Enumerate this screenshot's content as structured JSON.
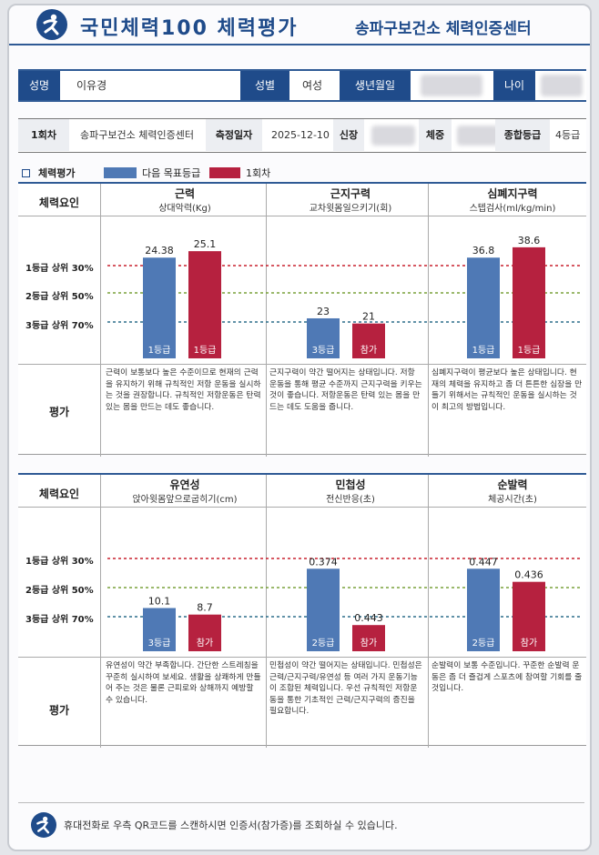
{
  "header": {
    "title": "국민체력100 체력평가",
    "center": "송파구보건소 체력인증센터"
  },
  "info": {
    "name_label": "성명",
    "name": "이유경",
    "sex_label": "성별",
    "sex": "여성",
    "birth_label": "생년월일",
    "age_label": "나이"
  },
  "session": {
    "round": "1회차",
    "center": "송파구보건소 체력인증센터",
    "date_label": "측정일자",
    "date": "2025-12-10",
    "height_label": "신장",
    "weight_label": "체중",
    "overall_label": "종합등급",
    "overall": "4등급"
  },
  "legend": {
    "title": "체력평가",
    "target": "다음 목표등급",
    "round1": "1회차"
  },
  "colors": {
    "navy": "#1f4b8a",
    "target_bar": "#4f79b5",
    "round_bar": "#b6213f",
    "line_1": "#c8202e",
    "line_2": "#7aa23b",
    "line_3": "#2d6f8c"
  },
  "labels": {
    "row_factor": "체력요인",
    "row_eval": "평가",
    "grade1": "1등급 상위 30%",
    "grade2": "2등급 상위 50%",
    "grade3": "3등급 상위 70%"
  },
  "sections": [
    {
      "items": [
        {
          "name": "근력",
          "test": "상대악력(Kg)",
          "target_value": "24.38",
          "target_grade": "1등급",
          "target_level": 0.78,
          "round_value": "25.1",
          "round_grade": "1등급",
          "round_level": 0.83,
          "evaluation": "근력이 보통보다 높은 수준이므로 현재의 근력을 유지하기 위해 규칙적인 저항 운동을 실시하는 것을 권장합니다. 규칙적인 저항운동은 탄력 있는 몸을 만드는 데도 좋습니다."
        },
        {
          "name": "근지구력",
          "test": "교차윗몸일으키기(회)",
          "target_value": "23",
          "target_grade": "3등급",
          "target_level": 0.31,
          "round_value": "21",
          "round_grade": "참가",
          "round_level": 0.27,
          "evaluation": "근지구력이 약간 떨어지는 상태입니다. 저항 운동을 통해 평균 수준까지 근지구력을 키우는 것이 좋습니다. 저항운동은 탄력 있는 몸을 만드는 데도 도움을 줍니다."
        },
        {
          "name": "심폐지구력",
          "test": "스텝검사(ml/kg/min)",
          "target_value": "36.8",
          "target_grade": "1등급",
          "target_level": 0.78,
          "round_value": "38.6",
          "round_grade": "1등급",
          "round_level": 0.86,
          "evaluation": "심폐지구력이 평균보다 높은 상태입니다. 현재의 체력을 유지하고 좀 더 튼튼한 심장을 만들기 위해서는 규칙적인 운동을 실시하는 것이 최고의 방법입니다."
        }
      ]
    },
    {
      "items": [
        {
          "name": "유연성",
          "test": "앉아윗몸앞으로굽히기(cm)",
          "target_value": "10.1",
          "target_grade": "3등급",
          "target_level": 0.33,
          "round_value": "8.7",
          "round_grade": "참가",
          "round_level": 0.28,
          "evaluation": "유연성이 약간 부족합니다. 간단한 스트레칭을 꾸준히 실시하여 보세요. 생활을 상쾌하게 만들어 주는 것은 물론 근피로와 상해까지 예방할 수 있습니다."
        },
        {
          "name": "민첩성",
          "test": "전신반응(초)",
          "target_value": "0.374",
          "target_grade": "2등급",
          "target_level": 0.63,
          "round_value": "0.443",
          "round_grade": "참가",
          "round_level": 0.2,
          "evaluation": "민첩성이 약간 떨어지는 상태입니다. 민첩성은 근력/근지구력/유연성 등 여러 가지 운동기능이 조합된 체력입니다. 우선 규칙적인 저항운동을 통한 기초적인 근력/근지구력의 증진을 필요합니다."
        },
        {
          "name": "순발력",
          "test": "체공시간(초)",
          "target_value": "0.447",
          "target_grade": "2등급",
          "target_level": 0.63,
          "round_value": "0.436",
          "round_grade": "참가",
          "round_level": 0.53,
          "evaluation": "순발력이 보통 수준입니다. 꾸준한 순발력 운동은 좀 더 즐겁게 스포츠에 참여할 기회를 줄 것입니다."
        }
      ]
    }
  ],
  "footer": {
    "text": "휴대전화로 우측 QR코드를 스캔하시면 인증서(참가증)를 조회하실 수 있습니다."
  }
}
